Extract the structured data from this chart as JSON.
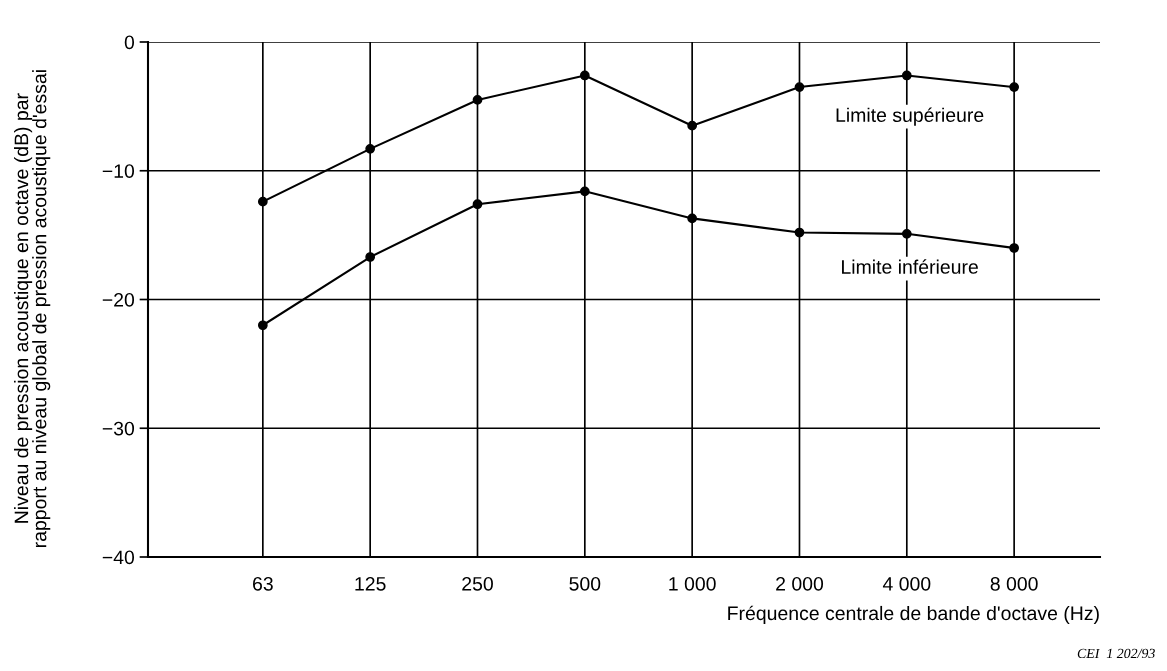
{
  "chart_data": {
    "type": "line",
    "xlabel": "Fréquence centrale de bande d'octave (Hz)",
    "ylabel": "Niveau de pression acoustique en octave (dB) par\nrapport au niveau global de pression acoustique d'essai",
    "categories": [
      "63",
      "125",
      "250",
      "500",
      "1 000",
      "2 000",
      "4 000",
      "8 000"
    ],
    "series": [
      {
        "color": "#000000",
        "values": [
          -12.4,
          -8.3,
          -4.5,
          -2.6,
          -6.5,
          -3.5,
          -2.6,
          -3.5
        ]
      },
      {
        "color": "#000000",
        "values": [
          -22.0,
          -16.7,
          -12.6,
          -11.6,
          -13.7,
          -14.8,
          -14.9,
          -16.0
        ]
      }
    ],
    "ylim": [
      -40,
      0
    ],
    "yticks": [
      {
        "value": -40,
        "label": "−40"
      },
      {
        "value": -30,
        "label": "−30"
      },
      {
        "value": -20,
        "label": "−20"
      },
      {
        "value": -10,
        "label": "−10"
      },
      0
    ],
    "grid": true,
    "marker": "circle",
    "line_style": "solid",
    "legend": false,
    "annotations": [
      "Limite supérieure",
      "Limite inférieure",
      "CEI  1 202/93"
    ]
  }
}
